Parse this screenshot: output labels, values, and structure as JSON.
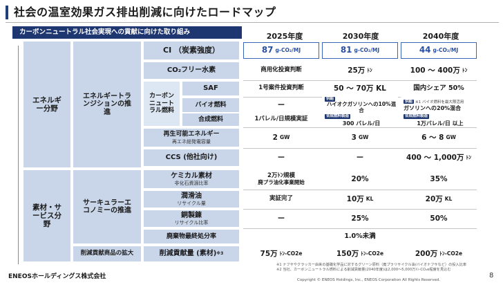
{
  "title": "社会の温室効果ガス排出削減に向けたロードマップ",
  "section_header": "カーボンニュートラル社会実現への貢献に向けた取り組み",
  "years": [
    "2025年度",
    "2030年度",
    "2040年度"
  ],
  "categories": {
    "energy": "エネルギー分野",
    "materials": "素材・サービス分野"
  },
  "subcategories": {
    "energy_transition": "エネルギートランジションの推進",
    "circular": "サーキュラーエコノミーの推進",
    "carbon_neutral_fuel": "カーボンニュートラル燃料",
    "reduction_contribution": "削減貢献商品の拡大"
  },
  "rows": {
    "ci": {
      "label": "CI （炭素強度）",
      "v2025": "87",
      "v2030": "81",
      "v2040": "44",
      "unit": "g-CO₂/MJ"
    },
    "h2": {
      "label": "CO₂フリー水素",
      "v2025": "商用化投資判断",
      "v2030": "25万",
      "v2030_unit": "ﾄﾝ",
      "v2040": "100 ～ 400万",
      "v2040_unit": "ﾄﾝ"
    },
    "saf": {
      "label": "SAF",
      "v2025": "1号案件投資判断",
      "v2030": "50 ～ 70万 KL",
      "v2040": "国内シェア 50%"
    },
    "bio": {
      "label": "バイオ燃料",
      "v2025": "ー",
      "v2030": "ハイオクガソリンへの10%混合",
      "v2040": "ガソリンへの20%混合",
      "tag": "供給",
      "note": "※1 バイオ燃料を最大限活用"
    },
    "synthetic": {
      "label": "合成燃料",
      "v2025": "1バレル/日規模実証",
      "v2030": "300 バレル/日",
      "v2040": "1万バレル/日 以上",
      "tag": "合成燃料製造"
    },
    "renewable": {
      "label": "再生可能エネルギー",
      "sublabel": "再エネ総発電容量",
      "v2025": "2",
      "v2030": "3",
      "v2040": "6 ～ 8",
      "unit": "GW"
    },
    "ccs": {
      "label": "CCS (他社向け)",
      "v2025": "ー",
      "v2030": "ー",
      "v2040": "400 ～ 1,000万",
      "v2040_unit": "ﾄﾝ"
    },
    "chemical": {
      "label": "ケミカル素材",
      "sublabel": "非化石資源比率",
      "sup": "※2",
      "v2025": "2万ﾄﾝ規模",
      "v2025_b": "廃プラ油化事業開始",
      "v2030": "20%",
      "v2040": "35%"
    },
    "lubricant": {
      "label": "潤滑油",
      "sublabel": "リサイクル量",
      "v2025": "実証完了",
      "v2030": "10万",
      "v2040": "20万",
      "unit": "KL"
    },
    "copper": {
      "label": "銅製錬",
      "sublabel": "リサイクル比率",
      "v2025": "ー",
      "v2030": "25%",
      "v2040": "50%"
    },
    "waste": {
      "label": "廃棄物最終処分率",
      "value": "1.0%未満"
    },
    "reduction": {
      "label": "削減貢献量 (素材)",
      "sup": "※3",
      "v2025": "75万",
      "v2030": "150万",
      "v2040": "200万",
      "unit": "ﾄﾝ-CO2e"
    }
  },
  "footnotes": [
    "※1 ナフサやクラッカー由来の基礎化学品に対するグリーン原料（廃プラリサイクル油/バイオナフサなど）の投入比率",
    "※2 当社、カーボンニュートラル燃料による削減貢献量(2040年度)は2,000～5,000万ﾄﾝ-CO₂e程度を見込む"
  ],
  "footer": {
    "company": "ENEOSホールディングス株式会社",
    "copyright": "Copyright © ENEOS Holdings, Inc., ENEOS Corporation  All Rights Reserved.",
    "page": "8"
  }
}
